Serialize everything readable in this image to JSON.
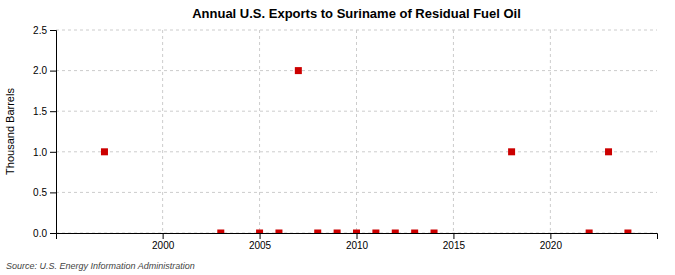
{
  "chart_data": {
    "type": "scatter",
    "title": "Annual U.S. Exports to Suriname of Residual Fuel Oil",
    "y_label": "Thousand Barrels",
    "annotations": [
      "Source: U.S. Energy Information Administration"
    ],
    "x": [
      1997,
      2003,
      2005,
      2006,
      2007,
      2008,
      2009,
      2010,
      2011,
      2012,
      2013,
      2014,
      2018,
      2022,
      2023,
      2024
    ],
    "values": [
      1.0,
      0.0,
      0.0,
      0.0,
      2.0,
      0.0,
      0.0,
      0.0,
      0.0,
      0.0,
      0.0,
      0.0,
      1.0,
      0.0,
      1.0,
      0.0
    ],
    "color": "#cc0000",
    "marker": "square",
    "xlim": [
      1994.5,
      2025.5
    ],
    "ylim": [
      0,
      2.5
    ],
    "xticks": [
      2000,
      2005,
      2010,
      2015,
      2020
    ],
    "yticks": [
      {
        "value": 0.0,
        "label": "0.0"
      },
      {
        "value": 0.5,
        "label": "0.5"
      },
      {
        "value": 1.0,
        "label": "1.0"
      },
      {
        "value": 1.5,
        "label": "1.5"
      },
      {
        "value": 2.0,
        "label": "2.0"
      },
      {
        "value": 2.5,
        "label": "2.5"
      }
    ],
    "grid": true
  }
}
